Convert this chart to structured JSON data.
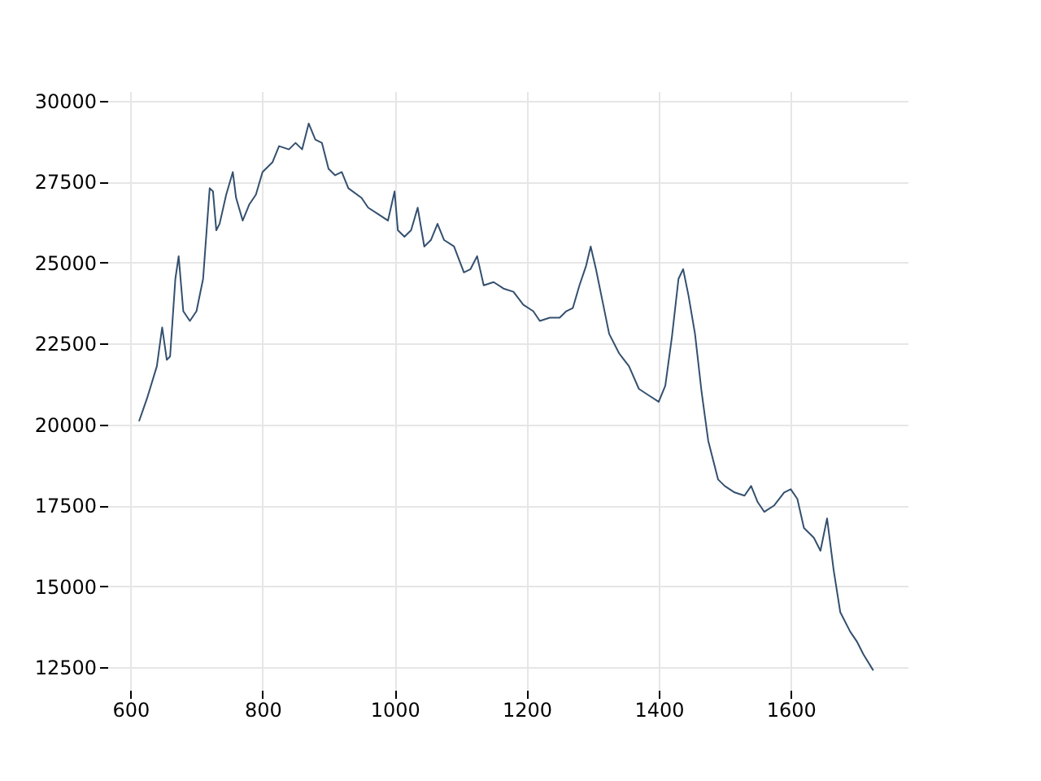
{
  "chart_data": {
    "type": "line",
    "grid": true,
    "xlim": [
      565,
      1777
    ],
    "ylim": [
      11800,
      30300
    ],
    "xticks": [
      600,
      800,
      1000,
      1200,
      1400,
      1600
    ],
    "yticks": [
      12500,
      15000,
      17500,
      20000,
      22500,
      25000,
      27500,
      30000
    ],
    "series": [
      {
        "color": "#34506f",
        "x": [
          613,
          625,
          640,
          648,
          655,
          660,
          668,
          673,
          680,
          690,
          700,
          710,
          720,
          725,
          730,
          735,
          745,
          755,
          760,
          770,
          780,
          790,
          800,
          815,
          825,
          840,
          850,
          860,
          870,
          880,
          890,
          900,
          910,
          920,
          930,
          950,
          960,
          975,
          990,
          1000,
          1005,
          1015,
          1025,
          1035,
          1045,
          1055,
          1065,
          1075,
          1090,
          1105,
          1115,
          1125,
          1135,
          1150,
          1165,
          1180,
          1195,
          1210,
          1220,
          1235,
          1250,
          1260,
          1270,
          1280,
          1290,
          1297,
          1305,
          1315,
          1325,
          1340,
          1355,
          1370,
          1385,
          1400,
          1410,
          1420,
          1430,
          1437,
          1445,
          1455,
          1465,
          1475,
          1490,
          1500,
          1515,
          1530,
          1540,
          1550,
          1560,
          1575,
          1590,
          1600,
          1610,
          1620,
          1635,
          1645,
          1655,
          1665,
          1675,
          1690,
          1700,
          1710,
          1725
        ],
        "values": [
          20100,
          20800,
          21800,
          23000,
          22000,
          22100,
          24500,
          25200,
          23500,
          23200,
          23500,
          24500,
          27300,
          27200,
          26000,
          26200,
          27100,
          27800,
          27000,
          26300,
          26800,
          27100,
          27800,
          28100,
          28600,
          28500,
          28700,
          28500,
          29300,
          28800,
          28700,
          27900,
          27700,
          27800,
          27300,
          27000,
          26700,
          26500,
          26300,
          27200,
          26000,
          25800,
          26000,
          26700,
          25500,
          25700,
          26200,
          25700,
          25500,
          24700,
          24800,
          25200,
          24300,
          24400,
          24200,
          24100,
          23700,
          23500,
          23200,
          23300,
          23300,
          23500,
          23600,
          24300,
          24900,
          25500,
          24800,
          23800,
          22800,
          22200,
          21800,
          21100,
          20900,
          20700,
          21200,
          22700,
          24500,
          24800,
          24000,
          22800,
          21000,
          19500,
          18300,
          18100,
          17900,
          17800,
          18100,
          17600,
          17300,
          17500,
          17900,
          18000,
          17700,
          16800,
          16500,
          16100,
          17100,
          15500,
          14200,
          13600,
          13300,
          12900,
          12400
        ]
      }
    ]
  }
}
